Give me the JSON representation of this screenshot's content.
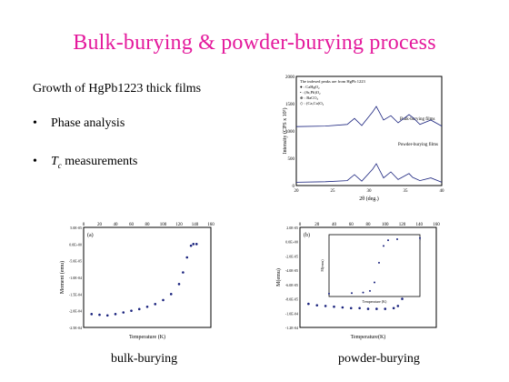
{
  "slide": {
    "title": "Bulk-burying & powder-burying process",
    "subtitle": "Growth of HgPb1223 thick films",
    "bullets": [
      {
        "marker": "•",
        "text": "Phase analysis"
      },
      {
        "marker": "•",
        "tc_symbol": "T",
        "tc_sub": "c",
        "text": " measurements"
      }
    ],
    "captions": {
      "left": "bulk-burying",
      "right": "powder-burying"
    }
  },
  "colors": {
    "title": "#e4199c",
    "series": "#1a237e"
  },
  "chart_data": [
    {
      "type": "line",
      "title": "",
      "xlabel": "2θ (deg.)",
      "ylabel": "Intensity (CPS x 10³)",
      "xlim": [
        20,
        40
      ],
      "ylim": [
        0,
        2000
      ],
      "x_ticks": [
        "20",
        "25",
        "30",
        "35",
        "40"
      ],
      "y_ticks": [
        "0",
        "500",
        "1000",
        "1500",
        "2000"
      ],
      "legend": [
        "The indexed peaks are from HgPb 1223",
        "● : CaHgO₂",
        "• : (Sr,Pb)O₂",
        "⊕ : BaCO₃",
        "◇ : (Ca,Cu)O₂"
      ],
      "legend_position": "top-left",
      "series": [
        {
          "name": "Bulk-burying films",
          "points": [
            [
              20,
              1080
            ],
            [
              24,
              1090
            ],
            [
              27,
              1120
            ],
            [
              28,
              1230
            ],
            [
              29,
              1100
            ],
            [
              30.5,
              1350
            ],
            [
              31,
              1450
            ],
            [
              32,
              1200
            ],
            [
              33,
              1280
            ],
            [
              34,
              1150
            ],
            [
              35.5,
              1300
            ],
            [
              36,
              1250
            ],
            [
              37,
              1120
            ],
            [
              38.5,
              1200
            ],
            [
              40,
              1090
            ]
          ]
        },
        {
          "name": "Powder-burying films",
          "points": [
            [
              20,
              60
            ],
            [
              24,
              70
            ],
            [
              27,
              90
            ],
            [
              28,
              200
            ],
            [
              29,
              80
            ],
            [
              30.5,
              300
            ],
            [
              31,
              400
            ],
            [
              32,
              140
            ],
            [
              33,
              250
            ],
            [
              34,
              110
            ],
            [
              35.5,
              220
            ],
            [
              36,
              150
            ],
            [
              37,
              90
            ],
            [
              38.5,
              140
            ],
            [
              40,
              60
            ]
          ]
        }
      ]
    },
    {
      "type": "scatter",
      "title": "",
      "panel_label": "(a)",
      "xlabel": "Temperature (K)",
      "ylabel": "Moment (emu)",
      "xlim": [
        0,
        160
      ],
      "ylim": [
        -0.00025,
        5e-05
      ],
      "x_ticks": [
        "0",
        "20",
        "40",
        "60",
        "80",
        "100",
        "120",
        "140",
        "160"
      ],
      "y_ticks": [
        "5.0E-05",
        "0.0E+00",
        "-5.0E-05",
        "-1.0E-04",
        "-1.5E-04",
        "-2.0E-04",
        "-2.5E-04"
      ],
      "series": [
        {
          "name": "",
          "points": [
            [
              10,
              -0.00021
            ],
            [
              20,
              -0.000212
            ],
            [
              30,
              -0.000214
            ],
            [
              40,
              -0.00021
            ],
            [
              50,
              -0.000205
            ],
            [
              60,
              -0.0002
            ],
            [
              70,
              -0.000195
            ],
            [
              80,
              -0.000188
            ],
            [
              90,
              -0.00018
            ],
            [
              100,
              -0.000168
            ],
            [
              110,
              -0.00015
            ],
            [
              120,
              -0.00012
            ],
            [
              125,
              -8.5e-05
            ],
            [
              130,
              -4e-05
            ],
            [
              135,
              -5e-06
            ],
            [
              138,
              0.0
            ],
            [
              142,
              0.0
            ]
          ]
        }
      ]
    },
    {
      "type": "scatter",
      "title": "",
      "panel_label": "(b)",
      "xlabel": "Temperature(K)",
      "ylabel": "M(emu)",
      "xlim": [
        0,
        160
      ],
      "ylim": [
        -0.00012,
        2e-05
      ],
      "x_ticks": [
        "0",
        "20",
        "40",
        "60",
        "80",
        "100",
        "120",
        "140",
        "160"
      ],
      "y_ticks": [
        "2.0E-05",
        "0.0E+00",
        "-2.0E-05",
        "-4.0E-05",
        "-6.0E-05",
        "-8.0E-05",
        "-1.0E-04",
        "-1.2E-04"
      ],
      "series": [
        {
          "name": "",
          "points": [
            [
              10,
              -8.7e-05
            ],
            [
              20,
              -8.9e-05
            ],
            [
              30,
              -9e-05
            ],
            [
              40,
              -9.1e-05
            ],
            [
              50,
              -9.2e-05
            ],
            [
              60,
              -9.3e-05
            ],
            [
              70,
              -9.3e-05
            ],
            [
              80,
              -9.4e-05
            ],
            [
              90,
              -9.4e-05
            ],
            [
              100,
              -9.4e-05
            ],
            [
              110,
              -9.3e-05
            ],
            [
              115,
              -9e-05
            ],
            [
              120,
              -8e-05
            ],
            [
              123,
              -6e-05
            ],
            [
              126,
              -3e-05
            ],
            [
              128,
              -1e-05
            ],
            [
              132,
              0.0
            ],
            [
              140,
              3e-06
            ]
          ]
        }
      ],
      "inset": {
        "xlabel": "Temperature (K)",
        "ylabel": "M(emu)",
        "points": [
          [
            100,
            -9.5e-05
          ],
          [
            110,
            -9.4e-05
          ],
          [
            115,
            -9.3e-05
          ],
          [
            118,
            -9e-05
          ],
          [
            120,
            -7.5e-05
          ],
          [
            122,
            -4e-05
          ],
          [
            124,
            -1e-05
          ],
          [
            126,
            0.0
          ],
          [
            130,
            2e-06
          ],
          [
            140,
            4e-06
          ]
        ]
      }
    }
  ]
}
